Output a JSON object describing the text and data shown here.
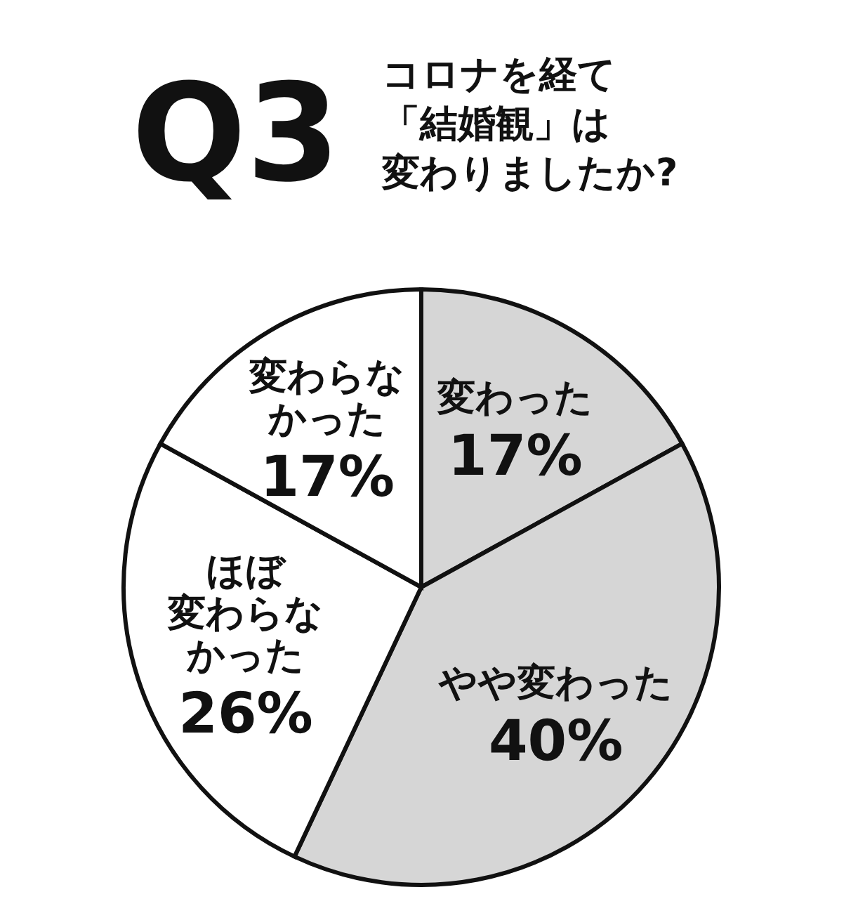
{
  "chart_data": {
    "type": "pie",
    "title": "Q3",
    "subtitle": "コロナを経て「結婚観」は変わりましたか?",
    "categories": [
      "変わった",
      "やや変わった",
      "ほぼ変わらなかった",
      "変わらなかった"
    ],
    "values": [
      17,
      40,
      26,
      17
    ],
    "colors": [
      "#d6d6d6",
      "#d6d6d6",
      "#ffffff",
      "#ffffff"
    ],
    "value_labels": [
      "17%",
      "40%",
      "26%",
      "17%"
    ]
  }
}
